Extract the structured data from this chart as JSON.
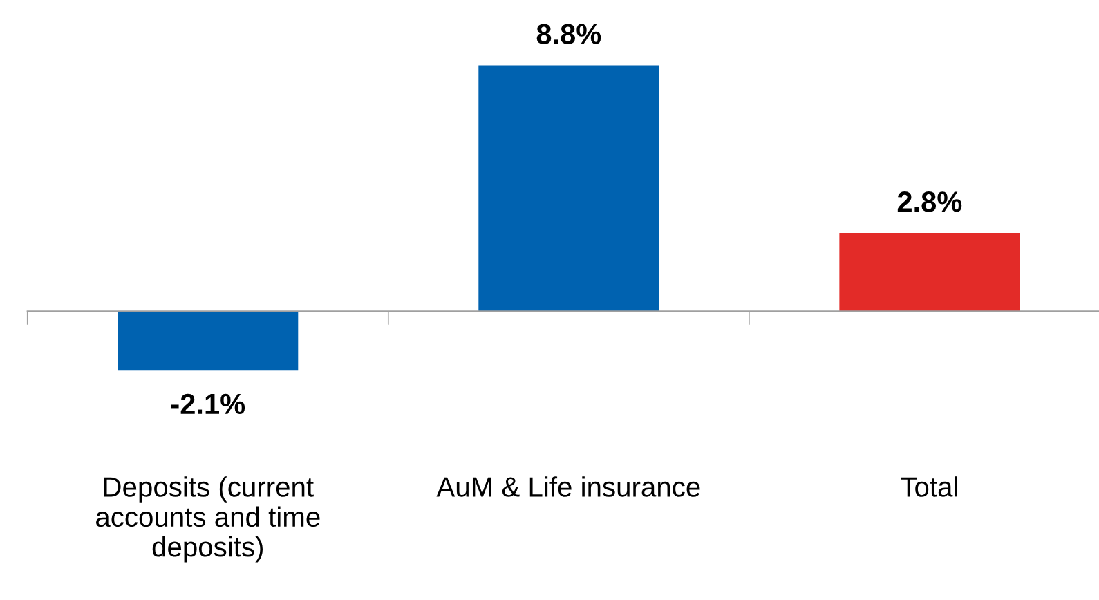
{
  "chart_data": {
    "type": "bar",
    "categories": [
      "Deposits (current\naccounts and time\ndeposits)",
      "AuM & Life insurance",
      "Total"
    ],
    "values": [
      -2.1,
      8.8,
      2.8
    ],
    "colors": [
      "#0062b0",
      "#0062b0",
      "#e32b28"
    ],
    "value_labels": [
      "-2.1%",
      "8.8%",
      "2.8%"
    ],
    "grid": false
  }
}
